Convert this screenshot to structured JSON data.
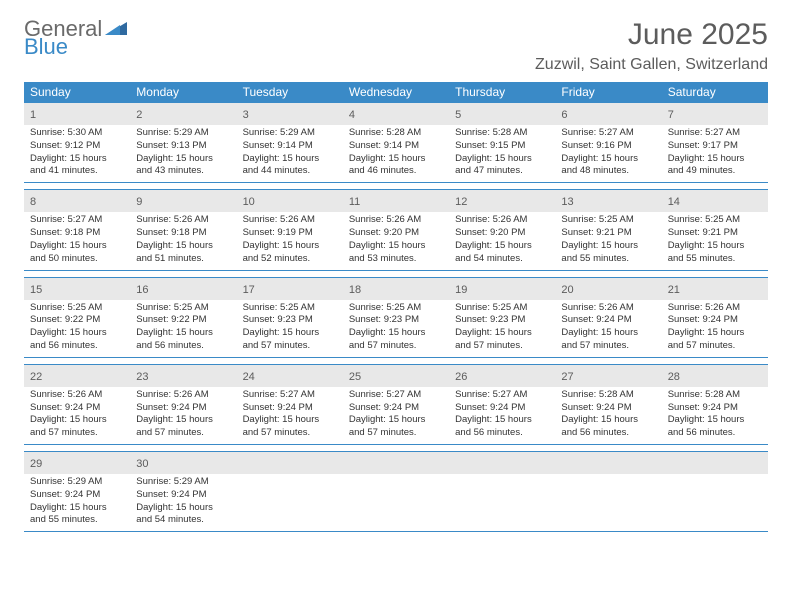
{
  "logo": {
    "general": "General",
    "blue": "Blue"
  },
  "title": "June 2025",
  "location": "Zuzwil, Saint Gallen, Switzerland",
  "colors": {
    "header_bg": "#3a8ac7",
    "daynum_bg": "#e8e8e8",
    "text_dark": "#333333",
    "text_grey": "#5c5c5c",
    "rule": "#3a8ac7"
  },
  "typography": {
    "title_fontsize": 30,
    "location_fontsize": 16,
    "dow_fontsize": 12,
    "daynum_fontsize": 11,
    "body_fontsize": 9.5
  },
  "days_of_week": [
    "Sunday",
    "Monday",
    "Tuesday",
    "Wednesday",
    "Thursday",
    "Friday",
    "Saturday"
  ],
  "weeks": [
    [
      {
        "n": 1,
        "sr": "5:30 AM",
        "ss": "9:12 PM",
        "dl": "15 hours and 41 minutes."
      },
      {
        "n": 2,
        "sr": "5:29 AM",
        "ss": "9:13 PM",
        "dl": "15 hours and 43 minutes."
      },
      {
        "n": 3,
        "sr": "5:29 AM",
        "ss": "9:14 PM",
        "dl": "15 hours and 44 minutes."
      },
      {
        "n": 4,
        "sr": "5:28 AM",
        "ss": "9:14 PM",
        "dl": "15 hours and 46 minutes."
      },
      {
        "n": 5,
        "sr": "5:28 AM",
        "ss": "9:15 PM",
        "dl": "15 hours and 47 minutes."
      },
      {
        "n": 6,
        "sr": "5:27 AM",
        "ss": "9:16 PM",
        "dl": "15 hours and 48 minutes."
      },
      {
        "n": 7,
        "sr": "5:27 AM",
        "ss": "9:17 PM",
        "dl": "15 hours and 49 minutes."
      }
    ],
    [
      {
        "n": 8,
        "sr": "5:27 AM",
        "ss": "9:18 PM",
        "dl": "15 hours and 50 minutes."
      },
      {
        "n": 9,
        "sr": "5:26 AM",
        "ss": "9:18 PM",
        "dl": "15 hours and 51 minutes."
      },
      {
        "n": 10,
        "sr": "5:26 AM",
        "ss": "9:19 PM",
        "dl": "15 hours and 52 minutes."
      },
      {
        "n": 11,
        "sr": "5:26 AM",
        "ss": "9:20 PM",
        "dl": "15 hours and 53 minutes."
      },
      {
        "n": 12,
        "sr": "5:26 AM",
        "ss": "9:20 PM",
        "dl": "15 hours and 54 minutes."
      },
      {
        "n": 13,
        "sr": "5:25 AM",
        "ss": "9:21 PM",
        "dl": "15 hours and 55 minutes."
      },
      {
        "n": 14,
        "sr": "5:25 AM",
        "ss": "9:21 PM",
        "dl": "15 hours and 55 minutes."
      }
    ],
    [
      {
        "n": 15,
        "sr": "5:25 AM",
        "ss": "9:22 PM",
        "dl": "15 hours and 56 minutes."
      },
      {
        "n": 16,
        "sr": "5:25 AM",
        "ss": "9:22 PM",
        "dl": "15 hours and 56 minutes."
      },
      {
        "n": 17,
        "sr": "5:25 AM",
        "ss": "9:23 PM",
        "dl": "15 hours and 57 minutes."
      },
      {
        "n": 18,
        "sr": "5:25 AM",
        "ss": "9:23 PM",
        "dl": "15 hours and 57 minutes."
      },
      {
        "n": 19,
        "sr": "5:25 AM",
        "ss": "9:23 PM",
        "dl": "15 hours and 57 minutes."
      },
      {
        "n": 20,
        "sr": "5:26 AM",
        "ss": "9:24 PM",
        "dl": "15 hours and 57 minutes."
      },
      {
        "n": 21,
        "sr": "5:26 AM",
        "ss": "9:24 PM",
        "dl": "15 hours and 57 minutes."
      }
    ],
    [
      {
        "n": 22,
        "sr": "5:26 AM",
        "ss": "9:24 PM",
        "dl": "15 hours and 57 minutes."
      },
      {
        "n": 23,
        "sr": "5:26 AM",
        "ss": "9:24 PM",
        "dl": "15 hours and 57 minutes."
      },
      {
        "n": 24,
        "sr": "5:27 AM",
        "ss": "9:24 PM",
        "dl": "15 hours and 57 minutes."
      },
      {
        "n": 25,
        "sr": "5:27 AM",
        "ss": "9:24 PM",
        "dl": "15 hours and 57 minutes."
      },
      {
        "n": 26,
        "sr": "5:27 AM",
        "ss": "9:24 PM",
        "dl": "15 hours and 56 minutes."
      },
      {
        "n": 27,
        "sr": "5:28 AM",
        "ss": "9:24 PM",
        "dl": "15 hours and 56 minutes."
      },
      {
        "n": 28,
        "sr": "5:28 AM",
        "ss": "9:24 PM",
        "dl": "15 hours and 56 minutes."
      }
    ],
    [
      {
        "n": 29,
        "sr": "5:29 AM",
        "ss": "9:24 PM",
        "dl": "15 hours and 55 minutes."
      },
      {
        "n": 30,
        "sr": "5:29 AM",
        "ss": "9:24 PM",
        "dl": "15 hours and 54 minutes."
      },
      null,
      null,
      null,
      null,
      null
    ]
  ],
  "labels": {
    "sunrise": "Sunrise:",
    "sunset": "Sunset:",
    "daylight": "Daylight:"
  }
}
